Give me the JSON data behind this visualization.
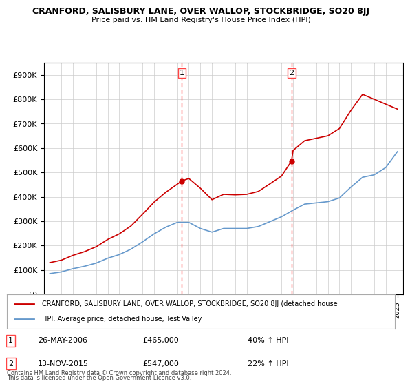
{
  "title1": "CRANFORD, SALISBURY LANE, OVER WALLOP, STOCKBRIDGE, SO20 8JJ",
  "title2": "Price paid vs. HM Land Registry's House Price Index (HPI)",
  "ylabel_ticks": [
    "£0",
    "£100K",
    "£200K",
    "£300K",
    "£400K",
    "£500K",
    "£600K",
    "£700K",
    "£800K",
    "£900K"
  ],
  "ytick_values": [
    0,
    100000,
    200000,
    300000,
    400000,
    500000,
    600000,
    700000,
    800000,
    900000
  ],
  "ylim": [
    0,
    950000
  ],
  "sale1_date": "26-MAY-2006",
  "sale1_price": 465000,
  "sale1_pct": "40%",
  "sale2_date": "13-NOV-2015",
  "sale2_price": 547000,
  "sale2_pct": "22%",
  "sale1_x": 2006.4,
  "sale2_x": 2015.87,
  "legend_label_red": "CRANFORD, SALISBURY LANE, OVER WALLOP, STOCKBRIDGE, SO20 8JJ (detached house",
  "legend_label_blue": "HPI: Average price, detached house, Test Valley",
  "footer1": "Contains HM Land Registry data © Crown copyright and database right 2024.",
  "footer2": "This data is licensed under the Open Government Licence v3.0.",
  "red_color": "#cc0000",
  "blue_color": "#6699cc",
  "vline_color": "#ff4444",
  "background_color": "#ffffff",
  "grid_color": "#cccccc",
  "hpi_years": [
    1995,
    1996,
    1997,
    1998,
    1999,
    2000,
    2001,
    2002,
    2003,
    2004,
    2005,
    2006,
    2007,
    2008,
    2009,
    2010,
    2011,
    2012,
    2013,
    2014,
    2015,
    2016,
    2017,
    2018,
    2019,
    2020,
    2021,
    2022,
    2023,
    2024,
    2025
  ],
  "hpi_values": [
    85000,
    92000,
    105000,
    115000,
    128000,
    148000,
    163000,
    185000,
    215000,
    248000,
    275000,
    295000,
    295000,
    270000,
    255000,
    270000,
    270000,
    270000,
    278000,
    298000,
    318000,
    345000,
    370000,
    375000,
    380000,
    395000,
    440000,
    480000,
    490000,
    520000,
    585000
  ],
  "red_years": [
    1995,
    1996,
    1997,
    1998,
    1999,
    2000,
    2001,
    2002,
    2003,
    2004,
    2005,
    2006.4,
    2007,
    2008,
    2009,
    2010,
    2011,
    2012,
    2013,
    2014,
    2015,
    2015.87,
    2016,
    2017,
    2018,
    2019,
    2020,
    2021,
    2022,
    2023,
    2024,
    2025
  ],
  "red_values": [
    130000,
    140000,
    160000,
    175000,
    195000,
    225000,
    248000,
    280000,
    328000,
    378000,
    418000,
    465000,
    475000,
    435000,
    388000,
    410000,
    408000,
    410000,
    422000,
    453000,
    485000,
    547000,
    590000,
    630000,
    640000,
    650000,
    680000,
    755000,
    820000,
    800000,
    780000,
    760000
  ]
}
